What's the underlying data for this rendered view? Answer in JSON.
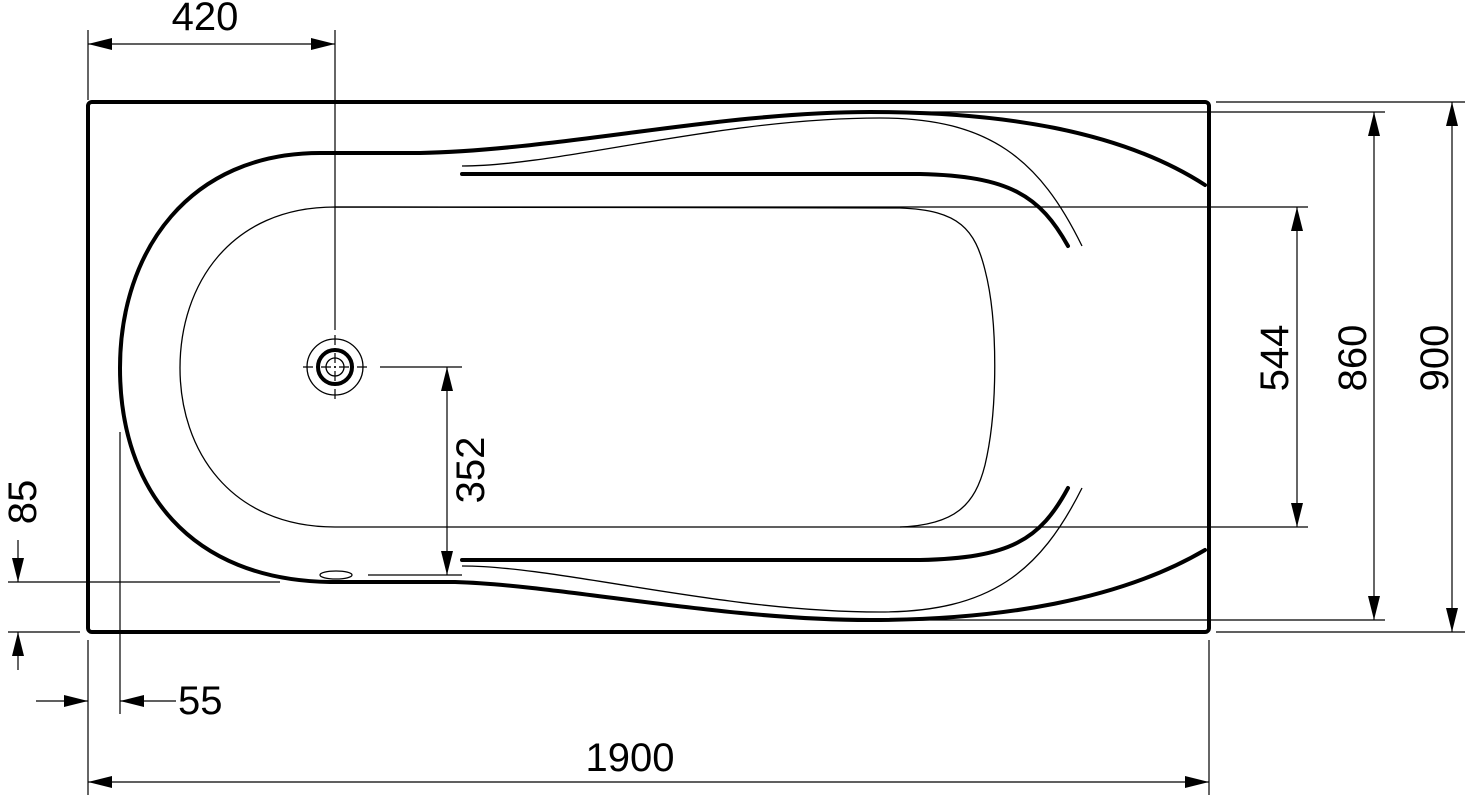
{
  "drawing": {
    "stroke_color": "#000000",
    "background": "#ffffff",
    "dimensions": {
      "drain_offset": "420",
      "overall_length": "1900",
      "overall_width": "900",
      "inner_width": "860",
      "bottom_width": "544",
      "drain_to_edge": "352",
      "overflow_offset": "85",
      "rim_offset": "55"
    }
  }
}
